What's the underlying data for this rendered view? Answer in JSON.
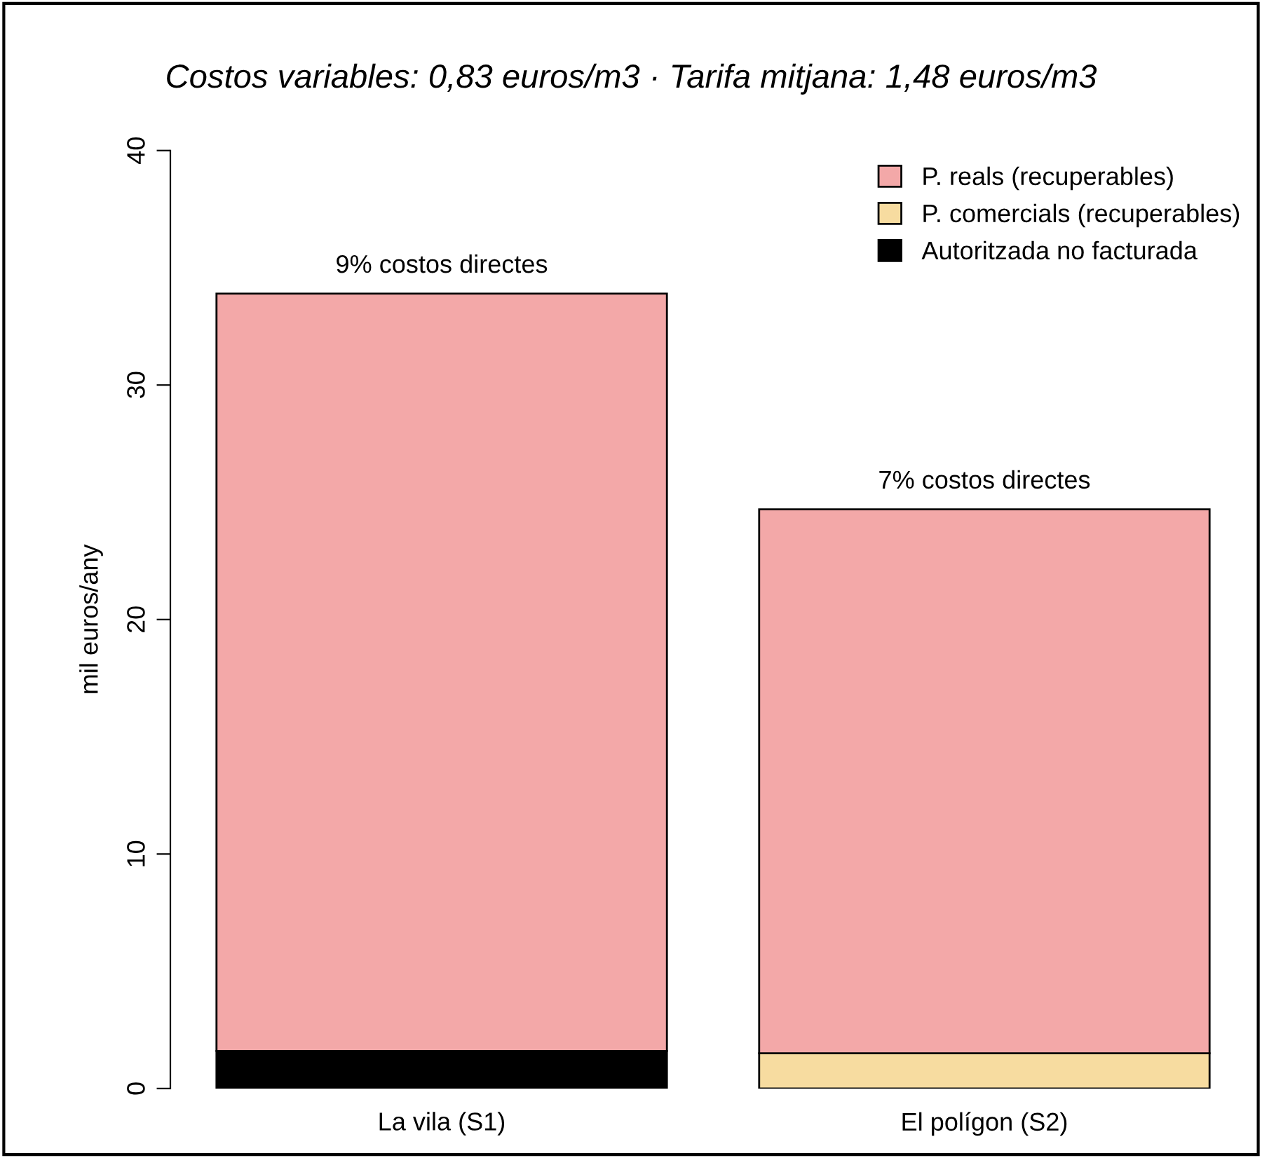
{
  "chart_data": {
    "type": "bar",
    "stacked": true,
    "title": "Costos variables: 0,83 euros/m3 · Tarifa mitjana: 1,48 euros/m3",
    "ylabel": "mil euros/any",
    "categories": [
      "La vila (S1)",
      "El polígon (S2)"
    ],
    "series": [
      {
        "name": "Autoritzada no facturada",
        "color": "#000000",
        "values": [
          1.6,
          0
        ]
      },
      {
        "name": "P. comercials (recuperables)",
        "color": "#f7dca0",
        "values": [
          0,
          1.5
        ]
      },
      {
        "name": "P. reals (recuperables)",
        "color": "#f3a8a8",
        "values": [
          32.3,
          23.2
        ]
      }
    ],
    "ylim": [
      0,
      40
    ],
    "yticks": [
      0,
      10,
      20,
      30,
      40
    ],
    "grid": false,
    "legend": "top right",
    "annotations": [
      {
        "text": "9% costos directes",
        "x": "La vila (S1)",
        "y": 33.9
      },
      {
        "text": "7% costos directes",
        "x": "El polígon (S2)",
        "y": 24.7
      }
    ]
  }
}
